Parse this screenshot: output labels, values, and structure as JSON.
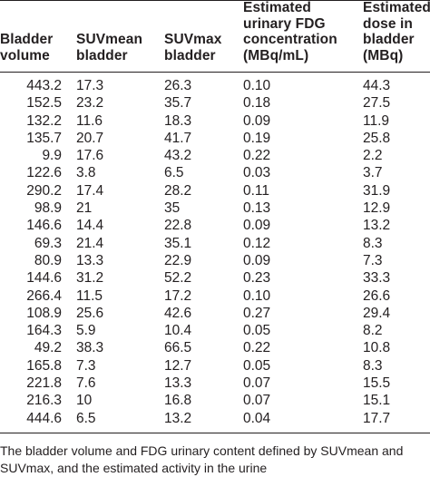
{
  "table": {
    "headers": [
      "Bladder\nvolume",
      "SUVmean\nbladder",
      "SUVmax\nbladder",
      "Estimated\nurinary FDG\nconcentration\n(MBq/mL)",
      "Estimated\ndose in\nbladder\n(MBq)"
    ],
    "rows": [
      [
        "443.2",
        "17.3",
        "26.3",
        "0.10",
        "44.3"
      ],
      [
        "152.5",
        "23.2",
        "35.7",
        "0.18",
        "27.5"
      ],
      [
        "132.2",
        "11.6",
        "18.3",
        "0.09",
        "11.9"
      ],
      [
        "135.7",
        "20.7",
        "41.7",
        "0.19",
        "25.8"
      ],
      [
        "9.9",
        "17.6",
        "43.2",
        "0.22",
        "2.2"
      ],
      [
        "122.6",
        "3.8",
        "6.5",
        "0.03",
        "3.7"
      ],
      [
        "290.2",
        "17.4",
        "28.2",
        "0.11",
        "31.9"
      ],
      [
        "98.9",
        "21",
        "35",
        "0.13",
        "12.9"
      ],
      [
        "146.6",
        "14.4",
        "22.8",
        "0.09",
        "13.2"
      ],
      [
        "69.3",
        "21.4",
        "35.1",
        "0.12",
        "8.3"
      ],
      [
        "80.9",
        "13.3",
        "22.9",
        "0.09",
        "7.3"
      ],
      [
        "144.6",
        "31.2",
        "52.2",
        "0.23",
        "33.3"
      ],
      [
        "266.4",
        "11.5",
        "17.2",
        "0.10",
        "26.6"
      ],
      [
        "108.9",
        "25.6",
        "42.6",
        "0.27",
        "29.4"
      ],
      [
        "164.3",
        "5.9",
        "10.4",
        "0.05",
        "8.2"
      ],
      [
        "49.2",
        "38.3",
        "66.5",
        "0.22",
        "10.8"
      ],
      [
        "165.8",
        "7.3",
        "12.7",
        "0.05",
        "8.3"
      ],
      [
        "221.8",
        "7.6",
        "13.3",
        "0.07",
        "15.5"
      ],
      [
        "216.3",
        "10",
        "16.8",
        "0.07",
        "15.1"
      ],
      [
        "444.6",
        "6.5",
        "13.2",
        "0.04",
        "17.7"
      ]
    ]
  },
  "caption": "The bladder volume and FDG urinary content defined by SUVmean and SUVmax, and the estimated activity in the urine"
}
